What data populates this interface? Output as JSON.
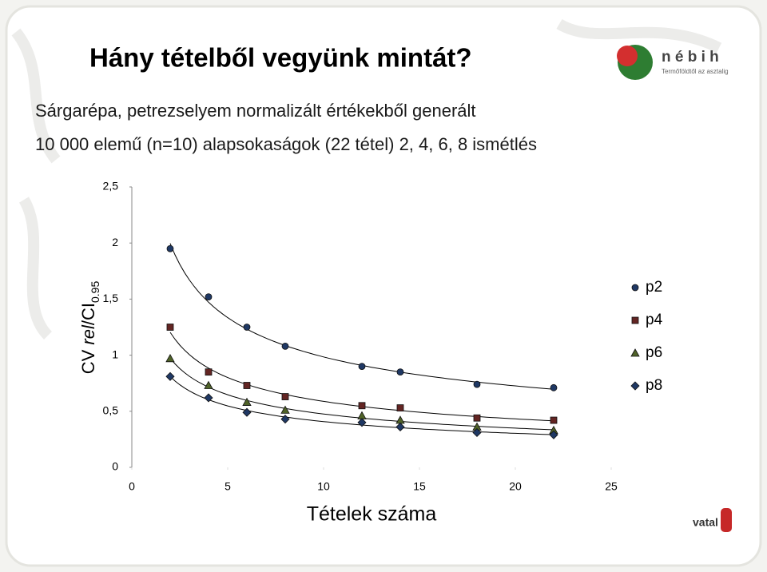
{
  "slide": {
    "title": "Hány tételből vegyünk mintát?",
    "subtitle": [
      "Sárgarépa, petrezselyem normalizált értékekből generált",
      "10 000 elemű (n=10) alapsokaságok (22 tétel) 2, 4, 6, 8 ismétlés"
    ],
    "logo": {
      "name": "n é b i h",
      "tagline": "Termőföldtől az asztalig",
      "footer": "vatal"
    }
  },
  "chart_data": {
    "type": "scatter",
    "xlabel": "Tételek száma",
    "ylabel_parts": [
      "CV ",
      "rel",
      "/CI",
      "0.95"
    ],
    "x": [
      2,
      4,
      6,
      8,
      12,
      14,
      18,
      22
    ],
    "series": [
      {
        "name": "p2",
        "marker": "circle",
        "color": "#1f3864",
        "values": [
          1.95,
          1.52,
          1.25,
          1.08,
          0.9,
          0.85,
          0.74,
          0.71
        ]
      },
      {
        "name": "p4",
        "marker": "square",
        "color": "#632523",
        "values": [
          1.25,
          0.85,
          0.73,
          0.63,
          0.55,
          0.53,
          0.44,
          0.42
        ]
      },
      {
        "name": "p6",
        "marker": "triangle",
        "color": "#4f6228",
        "values": [
          0.97,
          0.73,
          0.58,
          0.51,
          0.46,
          0.42,
          0.36,
          0.33
        ]
      },
      {
        "name": "p8",
        "marker": "diamond",
        "color": "#1f3864",
        "values": [
          0.81,
          0.62,
          0.49,
          0.43,
          0.4,
          0.36,
          0.31,
          0.29
        ]
      }
    ],
    "trendline": "power",
    "xlim": [
      0,
      25
    ],
    "xticks": [
      0,
      5,
      10,
      15,
      20,
      25
    ],
    "ylim": [
      0,
      2.5
    ],
    "yticks": [
      0,
      {
        "value": 0.5,
        "label": "0,5"
      },
      1,
      {
        "value": 1.5,
        "label": "1,5"
      },
      2,
      {
        "value": 2.5,
        "label": "2,5"
      }
    ],
    "legend": "right"
  }
}
